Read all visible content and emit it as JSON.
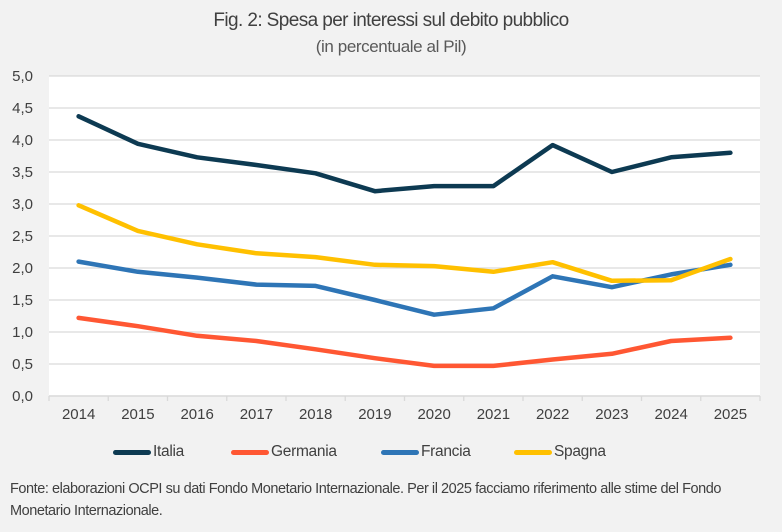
{
  "chart_data": {
    "type": "line",
    "title": "Fig. 2: Spesa per interessi sul debito pubblico",
    "subtitle": "(in percentuale al Pil)",
    "xlabel": "",
    "ylabel": "",
    "categories": [
      "2014",
      "2015",
      "2016",
      "2017",
      "2018",
      "2019",
      "2020",
      "2021",
      "2022",
      "2023",
      "2024",
      "2025"
    ],
    "ylim": [
      0,
      5
    ],
    "yticks": [
      "0,0",
      "0,5",
      "1,0",
      "1,5",
      "2,0",
      "2,5",
      "3,0",
      "3,5",
      "4,0",
      "4,5",
      "5,0"
    ],
    "ytick_values": [
      0,
      0.5,
      1,
      1.5,
      2,
      2.5,
      3,
      3.5,
      4,
      4.5,
      5
    ],
    "grid": true,
    "legend_position": "bottom",
    "series": [
      {
        "name": "Italia",
        "color": "#0d3a52",
        "values": [
          4.37,
          3.94,
          3.73,
          3.61,
          3.48,
          3.2,
          3.28,
          3.28,
          3.92,
          3.5,
          3.73,
          3.8
        ]
      },
      {
        "name": "Germania",
        "color": "#ff5733",
        "values": [
          1.22,
          1.09,
          0.94,
          0.86,
          0.73,
          0.59,
          0.47,
          0.47,
          0.57,
          0.66,
          0.86,
          0.91
        ]
      },
      {
        "name": "Francia",
        "color": "#2e75b6",
        "values": [
          2.1,
          1.94,
          1.85,
          1.74,
          1.72,
          1.5,
          1.27,
          1.37,
          1.87,
          1.7,
          1.9,
          2.05
        ]
      },
      {
        "name": "Spagna",
        "color": "#ffc000",
        "values": [
          2.98,
          2.58,
          2.37,
          2.23,
          2.17,
          2.05,
          2.03,
          1.94,
          2.09,
          1.8,
          1.81,
          2.14
        ]
      }
    ],
    "source_note": "Fonte: elaborazioni OCPI su dati Fondo Monetario Internazionale. Per il 2025 facciamo riferimento alle stime del Fondo Monetario Internazionale."
  }
}
